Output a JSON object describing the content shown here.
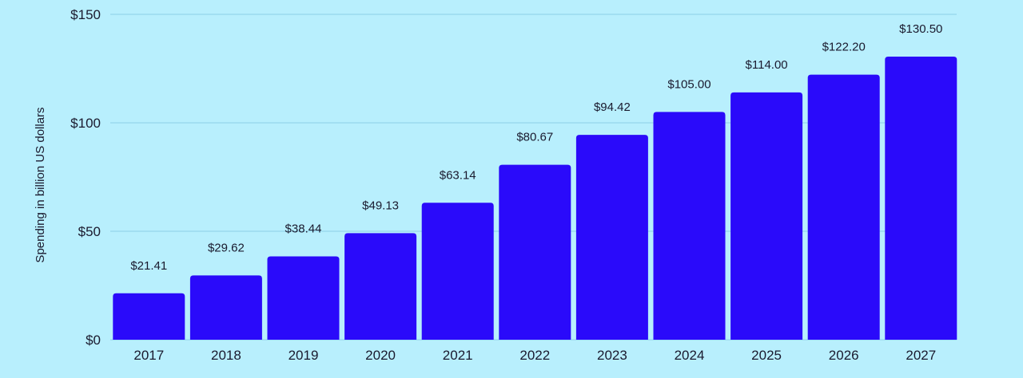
{
  "colors": {
    "background": "#b8effd",
    "bar": "#2a0afa",
    "gridline": "#8ccfe6",
    "text": "#1a1a2e"
  },
  "chart_data": {
    "type": "bar",
    "title": "",
    "xlabel": "",
    "ylabel": "Spending in billion US dollars",
    "categories": [
      "2017",
      "2018",
      "2019",
      "2020",
      "2021",
      "2022",
      "2023",
      "2024",
      "2025",
      "2026",
      "2027"
    ],
    "values": [
      21.41,
      29.62,
      38.44,
      49.13,
      63.14,
      80.67,
      94.42,
      105.0,
      114.0,
      122.2,
      130.5
    ],
    "value_labels": [
      "$21.41",
      "$29.62",
      "$38.44",
      "$49.13",
      "$63.14",
      "$80.67",
      "$94.42",
      "$105.00",
      "$114.00",
      "$122.20",
      "$130.50"
    ],
    "y_ticks": [
      0,
      50,
      100,
      150
    ],
    "y_tick_labels": [
      "$0",
      "$50",
      "$100",
      "$150"
    ],
    "ylim": [
      0,
      150
    ],
    "grid": true,
    "legend": "none"
  }
}
